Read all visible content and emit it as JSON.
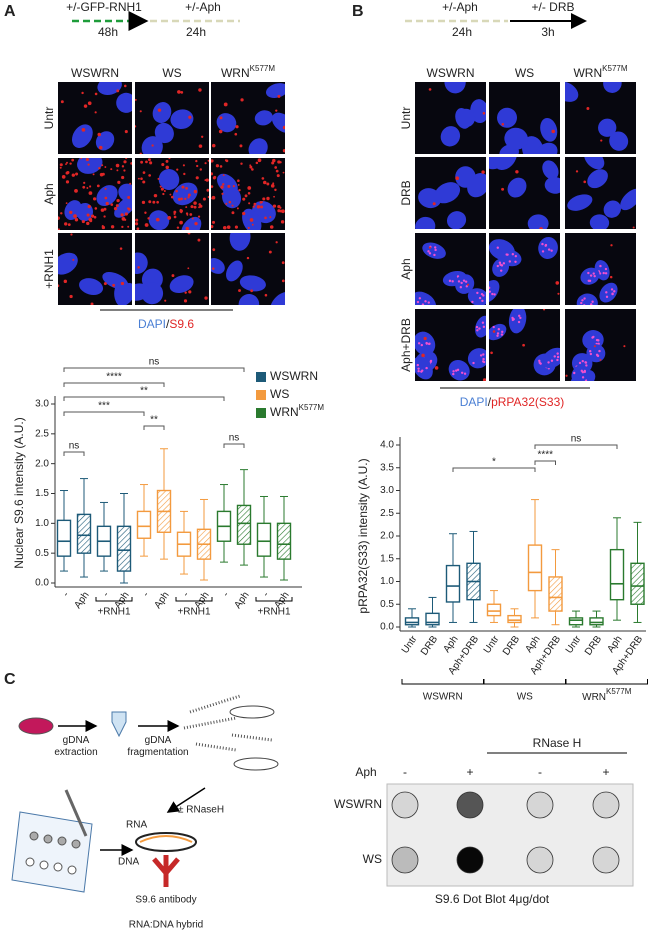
{
  "panels": {
    "A": {
      "label": "A",
      "timeline": {
        "step1": "+/-GFP-RNH1",
        "time1": "48h",
        "step2": "+/-Aph",
        "time2": "24h"
      },
      "columns": [
        "WSWRN",
        "WS",
        {
          "text": "WRN",
          "sup": "K577M"
        }
      ],
      "rows": [
        "Untr",
        "Aph",
        "+RNH1"
      ],
      "stain": {
        "dapi": "DAPI",
        "sep": "/",
        "marker": "S9.6"
      }
    },
    "B": {
      "label": "B",
      "timeline": {
        "step1": "+/-Aph",
        "time1": "24h",
        "step2": "+/- DRB",
        "time2": "3h"
      },
      "columns": [
        "WSWRN",
        "WS",
        {
          "text": "WRN",
          "sup": "K577M"
        }
      ],
      "rows": [
        "Untr",
        "DRB",
        "Aph",
        "Aph+DRB"
      ],
      "stain": {
        "dapi": "DAPI",
        "sep": "/",
        "marker": "pRPA32(S33)"
      }
    },
    "C": {
      "label": "C",
      "diagram": {
        "extraction": [
          "gDNA",
          "extraction"
        ],
        "fragmentation": [
          "gDNA",
          "fragmentation"
        ],
        "rnase": "± RNaseH",
        "rna": "RNA",
        "dna": "DNA",
        "antibody": "S9.6 antibody",
        "hybrid": "RNA:DNA hybrid"
      },
      "blot": {
        "header": "RNase H",
        "treatment": "Aph",
        "conditions": [
          "-",
          "+",
          "-",
          "+"
        ],
        "rows": [
          "WSWRN",
          "WS"
        ],
        "caption": "S9.6 Dot Blot 4μg/dot"
      }
    }
  },
  "chart_data": [
    {
      "type": "box",
      "y_label": "Nuclear S9.6 intensity (A.U.)",
      "ylim": [
        0,
        3
      ],
      "yticks": [
        {
          "value": 0,
          "label": "0.0"
        },
        {
          "value": 0.5,
          "label": "0.5"
        },
        {
          "value": 1,
          "label": "1.0"
        },
        {
          "value": 1.5,
          "label": "1.5"
        },
        {
          "value": 2,
          "label": "2.0"
        },
        {
          "value": 2.5,
          "label": "2.5"
        },
        {
          "value": 3,
          "label": "3.0"
        }
      ],
      "categories": [
        "-",
        "Aph",
        "-",
        "Aph"
      ],
      "hatched": [
        false,
        true,
        false,
        true
      ],
      "group_label": "+RNH1",
      "legend": true,
      "annotations": [
        "ns",
        "****",
        "**",
        "***",
        "**",
        "ns",
        "ns"
      ],
      "series": [
        {
          "name": "WSWRN",
          "color": "#1d5a78",
          "min": [
            0.2,
            0.1,
            0.2,
            0.0
          ],
          "q1": [
            0.45,
            0.5,
            0.45,
            0.2
          ],
          "median": [
            0.7,
            0.8,
            0.7,
            0.55
          ],
          "q3": [
            1.05,
            1.15,
            0.95,
            0.95
          ],
          "max": [
            1.55,
            1.75,
            1.35,
            1.5
          ]
        },
        {
          "name": "WS",
          "color": "#f39a3e",
          "min": [
            0.45,
            0.4,
            0.15,
            0.05
          ],
          "q1": [
            0.75,
            0.85,
            0.45,
            0.4
          ],
          "median": [
            0.95,
            1.2,
            0.65,
            0.65
          ],
          "q3": [
            1.2,
            1.55,
            0.85,
            0.9
          ],
          "max": [
            1.65,
            2.25,
            1.2,
            1.4
          ]
        },
        {
          "name": {
            "text": "WRN",
            "sup": "K577M"
          },
          "color": "#2a7a2e",
          "min": [
            0.35,
            0.3,
            0.1,
            0.05
          ],
          "q1": [
            0.7,
            0.65,
            0.45,
            0.4
          ],
          "median": [
            0.95,
            1.0,
            0.7,
            0.65
          ],
          "q3": [
            1.2,
            1.3,
            1.0,
            1.0
          ],
          "max": [
            1.65,
            1.9,
            1.45,
            1.45
          ]
        }
      ]
    },
    {
      "type": "box",
      "y_label": "pRPA32(S33) intensity (A.U.)",
      "ylim": [
        0,
        4
      ],
      "yticks": [
        {
          "value": 0,
          "label": "0.0"
        },
        {
          "value": 0.5,
          "label": "0.5"
        },
        {
          "value": 1,
          "label": "1.0"
        },
        {
          "value": 1.5,
          "label": "1.5"
        },
        {
          "value": 2,
          "label": "2.0"
        },
        {
          "value": 2.5,
          "label": "2.5"
        },
        {
          "value": 3,
          "label": "3.0"
        },
        {
          "value": 3.5,
          "label": "3.5"
        },
        {
          "value": 4,
          "label": "4.0"
        }
      ],
      "categories": [
        "Untr",
        "DRB",
        "Aph",
        "Aph+DRB"
      ],
      "hatched": [
        false,
        false,
        false,
        true
      ],
      "legend": false,
      "annotations": [
        "*",
        "****",
        "ns"
      ],
      "series": [
        {
          "name": "WSWRN",
          "color": "#1d5a78",
          "min": [
            0,
            0,
            0.1,
            0.1
          ],
          "q1": [
            0.05,
            0.05,
            0.55,
            0.6
          ],
          "median": [
            0.1,
            0.1,
            0.9,
            1.0
          ],
          "q3": [
            0.2,
            0.3,
            1.35,
            1.4
          ],
          "max": [
            0.4,
            0.65,
            2.05,
            2.1
          ]
        },
        {
          "name": "WS",
          "color": "#f39a3e",
          "min": [
            0.1,
            0,
            0.2,
            0.05
          ],
          "q1": [
            0.25,
            0.1,
            0.8,
            0.35
          ],
          "median": [
            0.35,
            0.15,
            1.2,
            0.65
          ],
          "q3": [
            0.5,
            0.25,
            1.8,
            1.1
          ],
          "max": [
            0.8,
            0.4,
            2.8,
            1.7
          ]
        },
        {
          "name": {
            "text": "WRN",
            "sup": "K577M"
          },
          "color": "#2a7a2e",
          "min": [
            0,
            0,
            0.15,
            0.1
          ],
          "q1": [
            0.05,
            0.05,
            0.6,
            0.5
          ],
          "median": [
            0.15,
            0.1,
            0.95,
            0.9
          ],
          "q3": [
            0.2,
            0.2,
            1.7,
            1.4
          ],
          "max": [
            0.35,
            0.35,
            2.4,
            2.3
          ]
        }
      ]
    }
  ]
}
